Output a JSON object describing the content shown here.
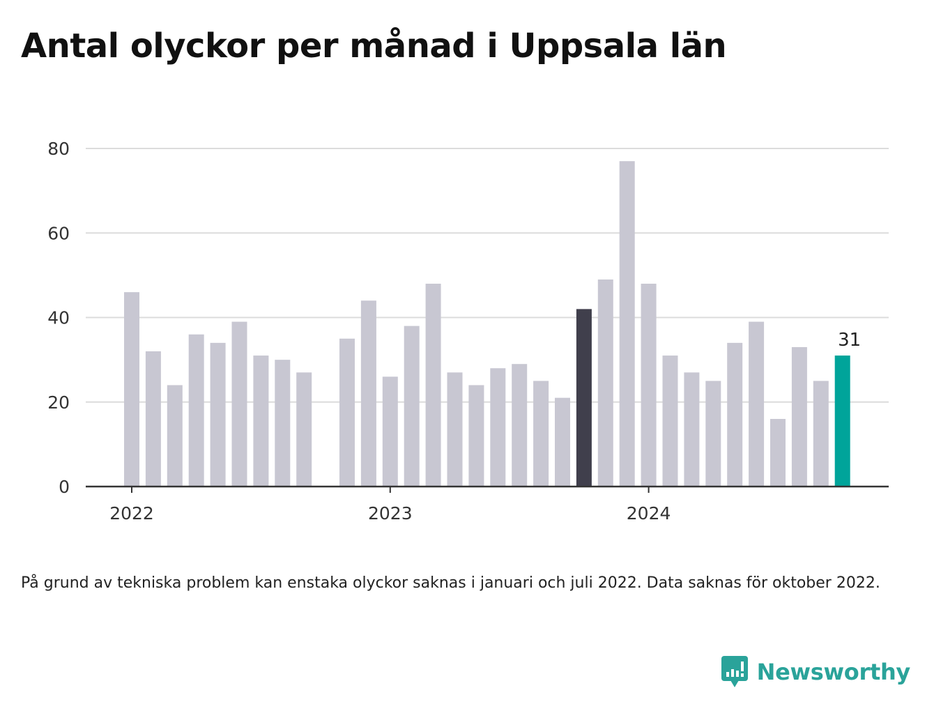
{
  "title": "Antal olyckor per månad i Uppsala län",
  "note": "På grund av tekniska problem kan enstaka olyckor saknas i januari och juli 2022. Data saknas för oktober 2022.",
  "brand": {
    "name": "Newsworthy",
    "icon": "newsworthy-logo-icon",
    "color": "#2aa39a"
  },
  "chart_data": {
    "type": "bar",
    "title": "Antal olyckor per månad i Uppsala län",
    "xlabel": "",
    "ylabel": "",
    "ylim": [
      0,
      80
    ],
    "yticks": [
      0,
      20,
      40,
      60,
      80
    ],
    "xtick_labels": [
      {
        "label": "2022",
        "category": "2022-01"
      },
      {
        "label": "2023",
        "category": "2023-01"
      },
      {
        "label": "2024",
        "category": "2024-01"
      }
    ],
    "grid": "horizontal",
    "categories": [
      "2022-01",
      "2022-02",
      "2022-03",
      "2022-04",
      "2022-05",
      "2022-06",
      "2022-07",
      "2022-08",
      "2022-09",
      "2022-10",
      "2022-11",
      "2022-12",
      "2023-01",
      "2023-02",
      "2023-03",
      "2023-04",
      "2023-05",
      "2023-06",
      "2023-07",
      "2023-08",
      "2023-09",
      "2023-10",
      "2023-11",
      "2023-12",
      "2024-01",
      "2024-02",
      "2024-03",
      "2024-04",
      "2024-05",
      "2024-06",
      "2024-07",
      "2024-08",
      "2024-09",
      "2024-10"
    ],
    "values": [
      46,
      32,
      24,
      36,
      34,
      39,
      31,
      30,
      27,
      null,
      35,
      44,
      26,
      38,
      48,
      27,
      24,
      28,
      29,
      25,
      21,
      42,
      49,
      77,
      48,
      31,
      27,
      25,
      34,
      39,
      16,
      33,
      25,
      31
    ],
    "colors": {
      "default": "#c8c7d2",
      "highlight_previous": "#403f4c",
      "highlight_latest": "#00a49a"
    },
    "highlight_previous_index": 21,
    "highlight_latest_index": 33,
    "value_labels": [
      {
        "category": "2024-10",
        "value": 31,
        "text": "31"
      }
    ]
  }
}
